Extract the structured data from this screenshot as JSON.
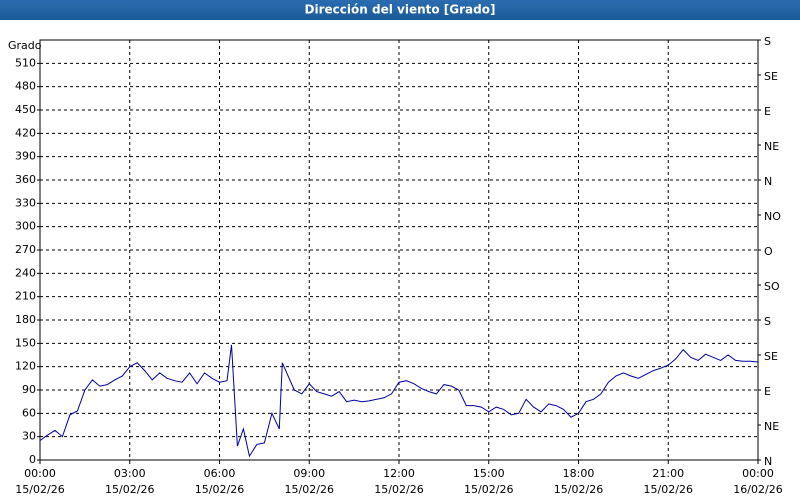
{
  "chart_data": {
    "type": "line",
    "title": "Dirección del viento [Grado]",
    "ylabel": "Grado",
    "xlim": [
      0,
      24
    ],
    "xticks": [
      {
        "value": 0,
        "label": "00:00",
        "date": "15/02/26"
      },
      {
        "value": 3,
        "label": "03:00",
        "date": "15/02/26"
      },
      {
        "value": 6,
        "label": "06:00",
        "date": "15/02/26"
      },
      {
        "value": 9,
        "label": "09:00",
        "date": "15/02/26"
      },
      {
        "value": 12,
        "label": "12:00",
        "date": "15/02/26"
      },
      {
        "value": 15,
        "label": "15:00",
        "date": "15/02/26"
      },
      {
        "value": 18,
        "label": "18:00",
        "date": "15/02/26"
      },
      {
        "value": 21,
        "label": "21:00",
        "date": "15/02/26"
      },
      {
        "value": 24,
        "label": "00:00",
        "date": "16/02/26"
      }
    ],
    "ylim": [
      0,
      540
    ],
    "yticks": [
      0,
      30,
      60,
      90,
      120,
      150,
      180,
      210,
      240,
      270,
      300,
      330,
      360,
      390,
      420,
      450,
      480,
      510
    ],
    "y2lim": [
      0,
      540
    ],
    "y2ticks": [
      {
        "value": 0,
        "label": "N"
      },
      {
        "value": 45,
        "label": "NE"
      },
      {
        "value": 90,
        "label": "E"
      },
      {
        "value": 135,
        "label": "SE"
      },
      {
        "value": 180,
        "label": "S"
      },
      {
        "value": 225,
        "label": "SO"
      },
      {
        "value": 270,
        "label": "O"
      },
      {
        "value": 315,
        "label": "NO"
      },
      {
        "value": 360,
        "label": "N"
      },
      {
        "value": 405,
        "label": "NE"
      },
      {
        "value": 450,
        "label": "E"
      },
      {
        "value": 495,
        "label": "SE"
      },
      {
        "value": 540,
        "label": "S"
      }
    ],
    "grid": true,
    "x": [
      0,
      0.25,
      0.5,
      0.75,
      1,
      1.25,
      1.5,
      1.75,
      2,
      2.25,
      2.5,
      2.75,
      3,
      3.25,
      3.5,
      3.75,
      4,
      4.25,
      4.5,
      4.75,
      5,
      5.25,
      5.5,
      5.75,
      6,
      6.25,
      6.4,
      6.6,
      6.8,
      7,
      7.25,
      7.5,
      7.75,
      8,
      8.1,
      8.5,
      8.75,
      9,
      9.25,
      9.5,
      9.75,
      10,
      10.25,
      10.5,
      10.75,
      11,
      11.25,
      11.5,
      11.75,
      12,
      12.25,
      12.5,
      12.75,
      13,
      13.25,
      13.5,
      13.75,
      14,
      14.25,
      14.5,
      14.75,
      15,
      15.25,
      15.5,
      15.75,
      16,
      16.25,
      16.5,
      16.75,
      17,
      17.25,
      17.5,
      17.75,
      18,
      18.25,
      18.5,
      18.75,
      19,
      19.25,
      19.5,
      19.75,
      20,
      20.25,
      20.5,
      20.75,
      21,
      21.25,
      21.5,
      21.75,
      22,
      22.25,
      22.5,
      22.75,
      23,
      23.25,
      23.5,
      23.75,
      24
    ],
    "series": [
      {
        "color": "#0000a0",
        "values": [
          25,
          32,
          38,
          30,
          58,
          63,
          90,
          103,
          95,
          97,
          103,
          108,
          120,
          125,
          115,
          103,
          112,
          105,
          102,
          100,
          112,
          98,
          112,
          105,
          100,
          102,
          148,
          18,
          40,
          5,
          20,
          22,
          60,
          40,
          125,
          90,
          85,
          98,
          88,
          85,
          82,
          88,
          75,
          77,
          75,
          76,
          78,
          80,
          85,
          100,
          102,
          98,
          92,
          88,
          85,
          97,
          95,
          90,
          70,
          70,
          68,
          62,
          68,
          65,
          58,
          60,
          78,
          68,
          62,
          72,
          70,
          65,
          55,
          60,
          75,
          78,
          85,
          100,
          108,
          112,
          108,
          105,
          110,
          115,
          118,
          122,
          130,
          142,
          132,
          128,
          136,
          132,
          128,
          135,
          128,
          127,
          127,
          126
        ]
      }
    ]
  }
}
